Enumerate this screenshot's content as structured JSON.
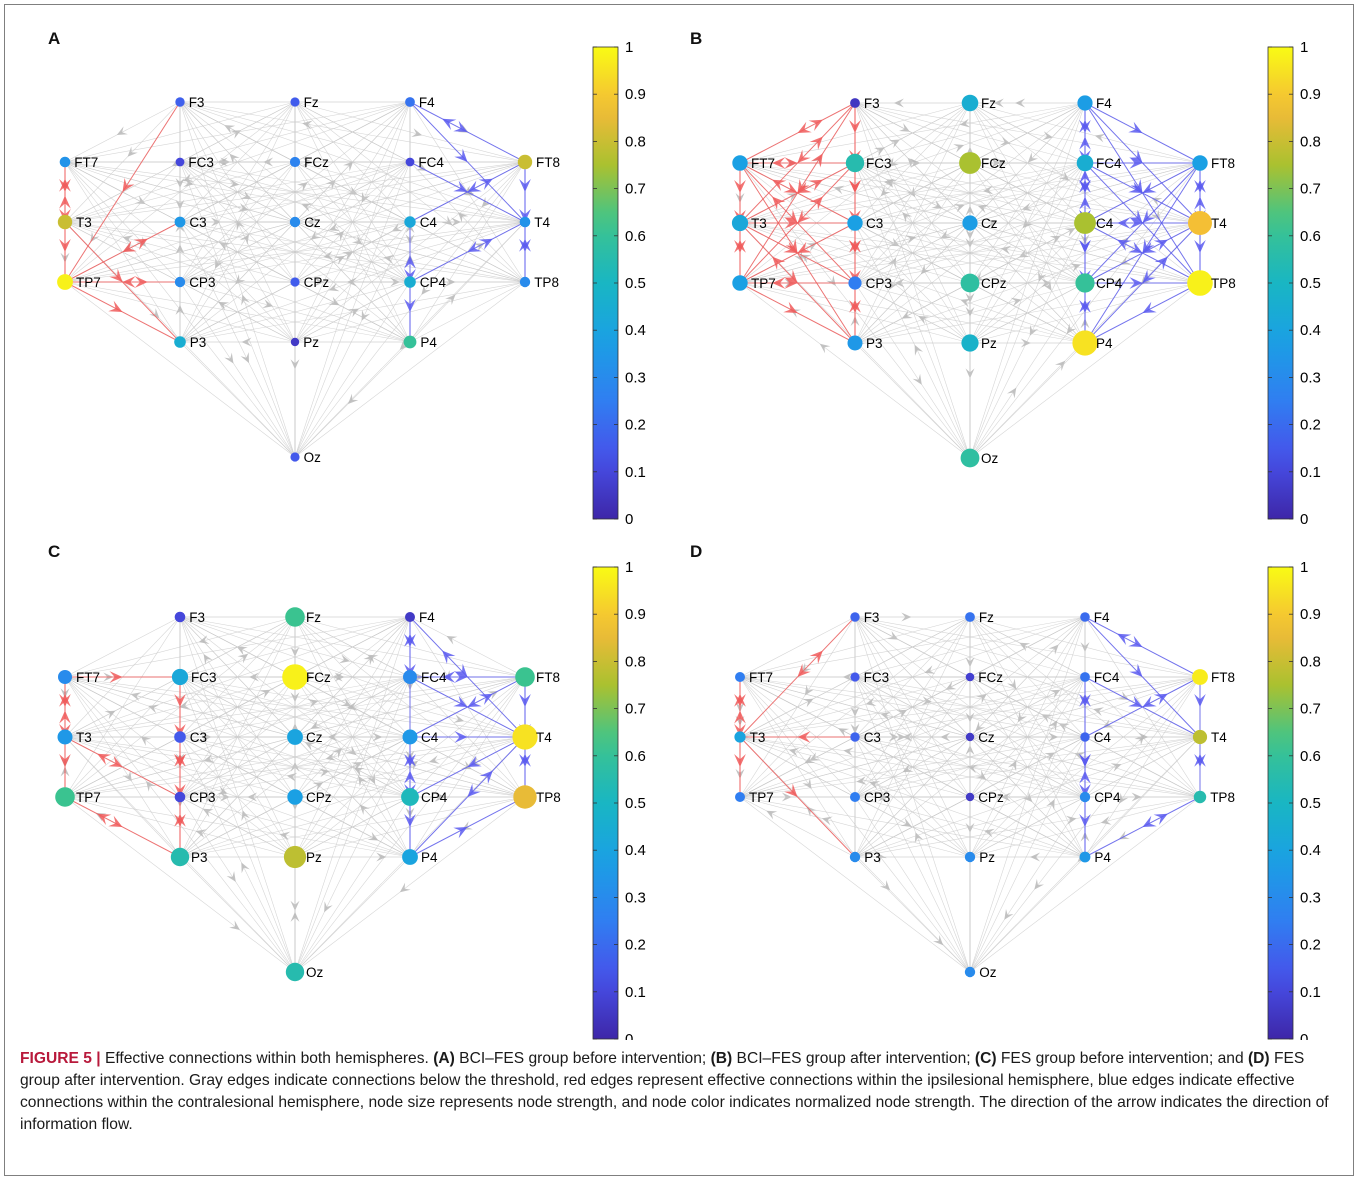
{
  "caption": {
    "label": "FIGURE 5 |",
    "segments": [
      {
        "t": " Effective connections within both hemispheres. "
      },
      {
        "t": "(A)",
        "b": true
      },
      {
        "t": " BCI–FES group before intervention; "
      },
      {
        "t": "(B)",
        "b": true
      },
      {
        "t": " BCI–FES group after intervention; "
      },
      {
        "t": "(C)",
        "b": true
      },
      {
        "t": " FES group before intervention; and "
      },
      {
        "t": "(D)",
        "b": true
      },
      {
        "t": " FES group after intervention. Gray edges indicate connections below the threshold, red edges represent effective connections within the ipsilesional hemisphere, blue edges indicate effective connections within the contralesional hemisphere, node size represents node strength, and node color indicates normalized node strength. The direction of the arrow indicates the direction of information flow."
      }
    ]
  },
  "colors": {
    "gray_edge": "#c8c8c8",
    "red_edge": "#f05a5a",
    "blue_edge": "#5a5af0",
    "colormap": "parula"
  },
  "colorbar": {
    "ticks": [
      "0",
      "0.1",
      "0.2",
      "0.3",
      "0.4",
      "0.5",
      "0.6",
      "0.7",
      "0.8",
      "0.9",
      "1"
    ]
  },
  "channels": [
    "F3",
    "Fz",
    "F4",
    "FT7",
    "FC3",
    "FCz",
    "FC4",
    "FT8",
    "T3",
    "C3",
    "Cz",
    "C4",
    "T4",
    "TP7",
    "CP3",
    "CPz",
    "CP4",
    "TP8",
    "P3",
    "Pz",
    "P4",
    "Oz"
  ],
  "left_channels": [
    "F3",
    "FT7",
    "FC3",
    "T3",
    "C3",
    "TP7",
    "CP3",
    "P3"
  ],
  "right_channels": [
    "F4",
    "FC4",
    "FT8",
    "C4",
    "T4",
    "CP4",
    "TP8",
    "P4"
  ],
  "panels": [
    {
      "letter": "A",
      "node_strength": {
        "F3": 0.17,
        "Fz": 0.16,
        "F4": 0.22,
        "FT7": 0.33,
        "FC3": 0.1,
        "FCz": 0.27,
        "FC4": 0.1,
        "FT8": 0.8,
        "T3": 0.8,
        "C3": 0.35,
        "Cz": 0.3,
        "C4": 0.42,
        "T4": 0.33,
        "TP7": 0.98,
        "CP3": 0.3,
        "CPz": 0.16,
        "CP4": 0.45,
        "TP8": 0.3,
        "P3": 0.45,
        "Pz": 0.06,
        "P4": 0.6,
        "Oz": 0.15
      },
      "red_edges": [
        [
          "FT7",
          "T3"
        ],
        [
          "T3",
          "TP7"
        ],
        [
          "FT7",
          "TP7"
        ],
        [
          "TP7",
          "P3"
        ],
        [
          "C3",
          "TP7"
        ],
        [
          "F3",
          "TP7"
        ],
        [
          "CP3",
          "TP7"
        ],
        [
          "T3",
          "P3"
        ]
      ],
      "blue_edges": [
        [
          "F4",
          "FT8"
        ],
        [
          "FT8",
          "T4"
        ],
        [
          "T4",
          "TP8"
        ],
        [
          "FT8",
          "TP8"
        ],
        [
          "C4",
          "P4"
        ],
        [
          "CP4",
          "P4"
        ],
        [
          "FT8",
          "C4"
        ],
        [
          "F4",
          "T4"
        ],
        [
          "T4",
          "CP4"
        ],
        [
          "FC4",
          "T4"
        ]
      ]
    },
    {
      "letter": "B",
      "node_strength": {
        "F3": 0.05,
        "Fz": 0.45,
        "F4": 0.37,
        "FT7": 0.38,
        "FC3": 0.55,
        "FCz": 0.75,
        "FC4": 0.45,
        "FT8": 0.38,
        "T3": 0.42,
        "C3": 0.38,
        "Cz": 0.37,
        "C4": 0.75,
        "T4": 0.88,
        "TP7": 0.38,
        "CP3": 0.25,
        "CPz": 0.58,
        "CP4": 0.6,
        "TP8": 0.98,
        "P3": 0.35,
        "Pz": 0.48,
        "P4": 0.95,
        "Oz": 0.58
      },
      "red_edges": [
        [
          "F3",
          "FT7"
        ],
        [
          "F3",
          "FC3"
        ],
        [
          "F3",
          "T3"
        ],
        [
          "F3",
          "C3"
        ],
        [
          "F3",
          "TP7"
        ],
        [
          "F3",
          "CP3"
        ],
        [
          "FT7",
          "FC3"
        ],
        [
          "FT7",
          "T3"
        ],
        [
          "FT7",
          "C3"
        ],
        [
          "FT7",
          "TP7"
        ],
        [
          "FT7",
          "CP3"
        ],
        [
          "FT7",
          "P3"
        ],
        [
          "FC3",
          "T3"
        ],
        [
          "FC3",
          "C3"
        ],
        [
          "FC3",
          "TP7"
        ],
        [
          "FC3",
          "CP3"
        ],
        [
          "FC3",
          "P3"
        ],
        [
          "T3",
          "C3"
        ],
        [
          "T3",
          "TP7"
        ],
        [
          "T3",
          "CP3"
        ],
        [
          "T3",
          "P3"
        ],
        [
          "C3",
          "TP7"
        ],
        [
          "C3",
          "CP3"
        ],
        [
          "C3",
          "P3"
        ],
        [
          "TP7",
          "CP3"
        ],
        [
          "TP7",
          "P3"
        ],
        [
          "CP3",
          "P3"
        ]
      ],
      "blue_edges": [
        [
          "F4",
          "FC4"
        ],
        [
          "F4",
          "FT8"
        ],
        [
          "F4",
          "C4"
        ],
        [
          "F4",
          "T4"
        ],
        [
          "F4",
          "CP4"
        ],
        [
          "F4",
          "TP8"
        ],
        [
          "F4",
          "P4"
        ],
        [
          "FC4",
          "FT8"
        ],
        [
          "FC4",
          "C4"
        ],
        [
          "FC4",
          "T4"
        ],
        [
          "FC4",
          "CP4"
        ],
        [
          "FC4",
          "TP8"
        ],
        [
          "FC4",
          "P4"
        ],
        [
          "FT8",
          "C4"
        ],
        [
          "FT8",
          "T4"
        ],
        [
          "FT8",
          "CP4"
        ],
        [
          "FT8",
          "TP8"
        ],
        [
          "FT8",
          "P4"
        ],
        [
          "C4",
          "T4"
        ],
        [
          "C4",
          "CP4"
        ],
        [
          "C4",
          "TP8"
        ],
        [
          "C4",
          "P4"
        ],
        [
          "T4",
          "CP4"
        ],
        [
          "T4",
          "TP8"
        ],
        [
          "T4",
          "P4"
        ],
        [
          "CP4",
          "TP8"
        ],
        [
          "CP4",
          "P4"
        ],
        [
          "TP8",
          "P4"
        ]
      ]
    },
    {
      "letter": "C",
      "node_strength": {
        "F3": 0.1,
        "Fz": 0.62,
        "F4": 0.06,
        "FT7": 0.3,
        "FC3": 0.42,
        "FCz": 0.98,
        "FC4": 0.3,
        "FT8": 0.62,
        "T3": 0.35,
        "C3": 0.15,
        "Cz": 0.4,
        "C4": 0.35,
        "T4": 0.95,
        "TP7": 0.62,
        "CP3": 0.1,
        "CPz": 0.38,
        "CP4": 0.52,
        "TP8": 0.85,
        "P3": 0.55,
        "Pz": 0.78,
        "P4": 0.4,
        "Oz": 0.55
      },
      "red_edges": [
        [
          "FT7",
          "T3"
        ],
        [
          "T3",
          "TP7"
        ],
        [
          "FT7",
          "TP7"
        ],
        [
          "FC3",
          "C3"
        ],
        [
          "C3",
          "CP3"
        ],
        [
          "FC3",
          "CP3"
        ],
        [
          "CP3",
          "P3"
        ],
        [
          "C3",
          "P3"
        ],
        [
          "TP7",
          "P3"
        ],
        [
          "FT7",
          "FC3"
        ],
        [
          "T3",
          "CP3"
        ],
        [
          "FC3",
          "P3"
        ]
      ],
      "blue_edges": [
        [
          "F4",
          "FC4"
        ],
        [
          "F4",
          "C4"
        ],
        [
          "F4",
          "T4"
        ],
        [
          "FT8",
          "T4"
        ],
        [
          "T4",
          "TP8"
        ],
        [
          "FT8",
          "TP8"
        ],
        [
          "FC4",
          "FT8"
        ],
        [
          "C4",
          "T4"
        ],
        [
          "C4",
          "CP4"
        ],
        [
          "CP4",
          "P4"
        ],
        [
          "C4",
          "P4"
        ],
        [
          "P4",
          "TP8"
        ],
        [
          "FT8",
          "C4"
        ],
        [
          "FC4",
          "T4"
        ],
        [
          "T4",
          "P4"
        ],
        [
          "T4",
          "CP4"
        ]
      ]
    },
    {
      "letter": "D",
      "node_strength": {
        "F3": 0.18,
        "Fz": 0.22,
        "F4": 0.2,
        "FT7": 0.25,
        "FC3": 0.15,
        "FCz": 0.08,
        "FC4": 0.22,
        "FT8": 0.97,
        "T3": 0.4,
        "C3": 0.18,
        "Cz": 0.06,
        "C4": 0.18,
        "T4": 0.78,
        "TP7": 0.25,
        "CP3": 0.25,
        "CPz": 0.06,
        "CP4": 0.3,
        "TP8": 0.55,
        "P3": 0.3,
        "Pz": 0.3,
        "P4": 0.35,
        "Oz": 0.3
      },
      "red_edges": [
        [
          "FT7",
          "T3"
        ],
        [
          "T3",
          "TP7"
        ],
        [
          "F3",
          "T3"
        ],
        [
          "T3",
          "P3"
        ],
        [
          "FT7",
          "TP7"
        ],
        [
          "C3",
          "T3"
        ]
      ],
      "blue_edges": [
        [
          "F4",
          "FT8"
        ],
        [
          "FT8",
          "T4"
        ],
        [
          "T4",
          "TP8"
        ],
        [
          "FC4",
          "P4"
        ],
        [
          "C4",
          "P4"
        ],
        [
          "CP4",
          "P4"
        ],
        [
          "TP8",
          "P4"
        ],
        [
          "F4",
          "T4"
        ],
        [
          "FC4",
          "C4"
        ],
        [
          "C4",
          "CP4"
        ],
        [
          "FT8",
          "C4"
        ],
        [
          "FC4",
          "T4"
        ]
      ]
    }
  ]
}
